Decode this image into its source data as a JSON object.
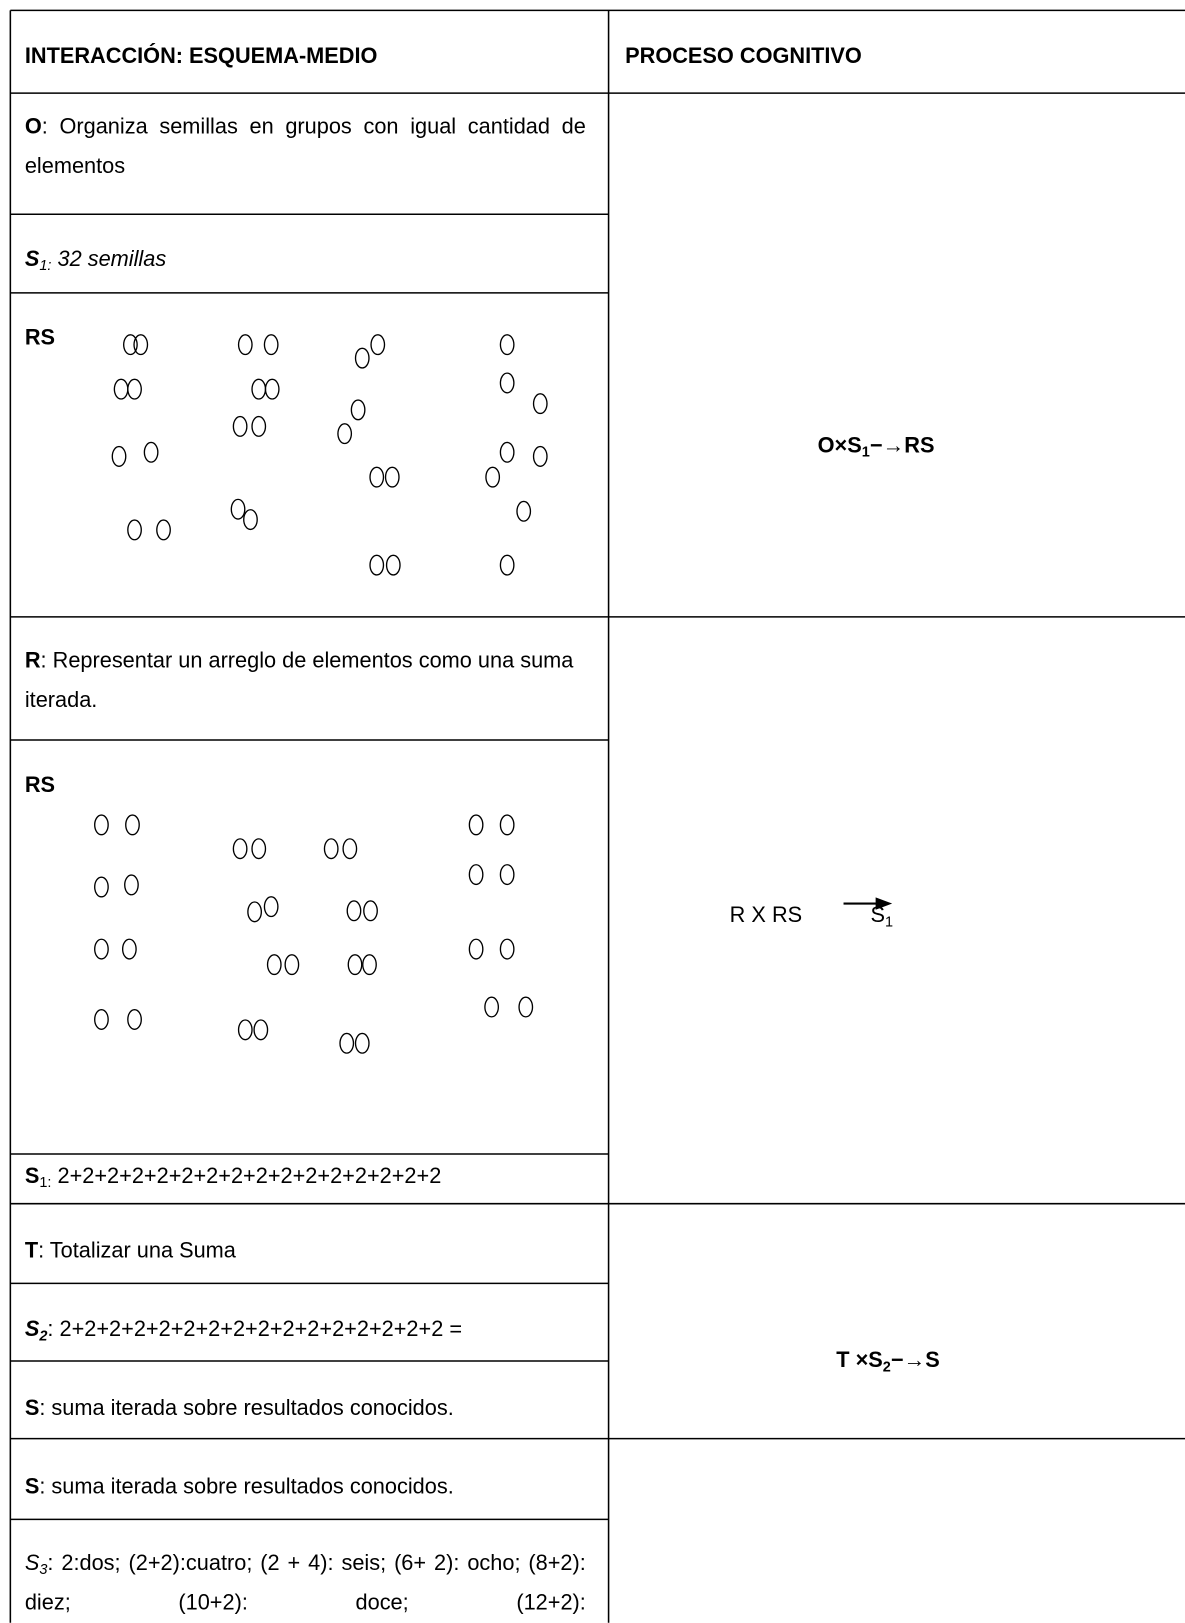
{
  "header": {
    "col1": "INTERACCIÓN: ESQUEMA-MEDIO",
    "col2": "PROCESO COGNITIVO"
  },
  "block1": {
    "o_label": "O",
    "o_text": ": Organiza semillas en grupos con igual cantidad de elementos",
    "s1_label": "S",
    "s1_sub": "1:",
    "s1_text": " 32 semillas",
    "rs_label": "RS",
    "process": {
      "a": "O×S",
      "sub": "1",
      "b": "−→RS"
    }
  },
  "block2": {
    "r_label": "R",
    "r_text": ": Representar un arreglo  de elementos como una suma iterada.",
    "rs_label": "RS",
    "s1_label": "S",
    "s1_sub": "1:",
    "s1_text": " 2+2+2+2+2+2+2+2+2+2+2+2+2+2+2+2",
    "process": {
      "a": "R X RS",
      "b": "S",
      "sub": "1"
    }
  },
  "block3": {
    "t_label": "T",
    "t_text": ": Totalizar una Suma",
    "s2_label": "S",
    "s2_sub": "2",
    "s2_text": ": 2+2+2+2+2+2+2+2+2+2+2+2+2+2+2+2 =",
    "s_label": "S",
    "s_text": ": suma iterada sobre resultados conocidos.",
    "process": {
      "a": "T ×S",
      "sub": "2",
      "b": "−→S"
    }
  },
  "block4": {
    "s_label": "S",
    "s_text": ": suma iterada sobre resultados conocidos.",
    "s3_label": "S",
    "s3_sub": "3",
    "s3_text": ": 2:dos; (2+2):cuatro; (2 + 4): seis; (6+ 2): ocho; (8+2): diez; (10+2): doce; (12+2):"
  }
}
